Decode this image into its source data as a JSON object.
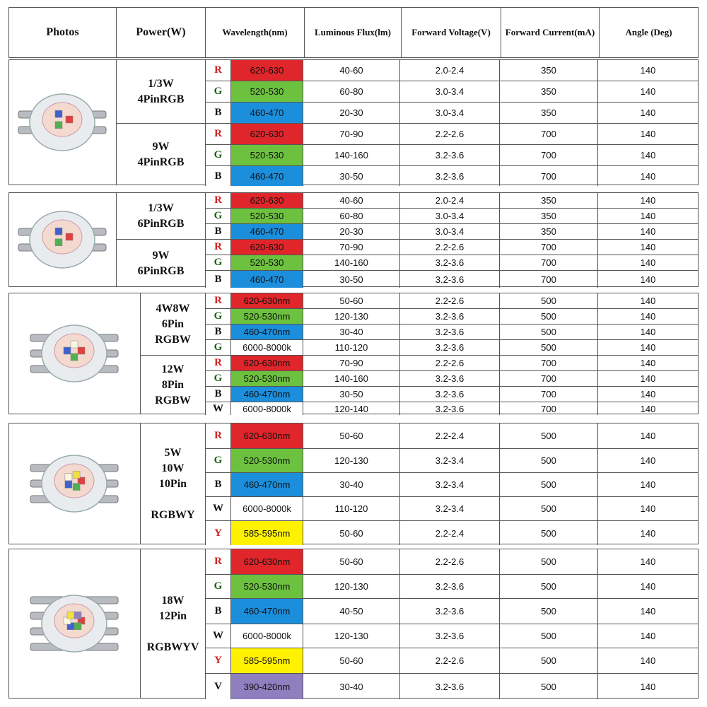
{
  "headers": {
    "photos": "Photos",
    "power": "Power(W)",
    "wavelength": "Wavelength(nm)",
    "flux": "Luminous Flux(lm)",
    "voltage": "Forward Voltage(V)",
    "current": "Forward Current(mA)",
    "angle": "Angle (Deg)"
  },
  "colors": {
    "R": "#e0262b",
    "G": "#6cc13e",
    "B": "#1c8fdc",
    "W": "#ffffff",
    "Y": "#fff200",
    "V": "#8f7fbe"
  },
  "groups": [
    {
      "powers": [
        {
          "label": "1/3W\n4PinRGB"
        },
        {
          "label": "9W\n4PinRGB"
        }
      ],
      "rows": [
        {
          "letter": "R",
          "wl": "620-630",
          "flux": "40-60",
          "v": "2.0-2.4",
          "i": "350",
          "angle": "140"
        },
        {
          "letter": "G",
          "wl": "520-530",
          "flux": "60-80",
          "v": "3.0-3.4",
          "i": "350",
          "angle": "140"
        },
        {
          "letter": "B",
          "wl": "460-470",
          "flux": "20-30",
          "v": "3.0-3.4",
          "i": "350",
          "angle": "140"
        },
        {
          "letter": "R",
          "wl": "620-630",
          "flux": "70-90",
          "v": "2.2-2.6",
          "i": "700",
          "angle": "140"
        },
        {
          "letter": "G",
          "wl": "520-530",
          "flux": "140-160",
          "v": "3.2-3.6",
          "i": "700",
          "angle": "140"
        },
        {
          "letter": "B",
          "wl": "460-470",
          "flux": "30-50",
          "v": "3.2-3.6",
          "i": "700",
          "angle": "140"
        }
      ]
    },
    {
      "powers": [
        {
          "label": "1/3W\n6PinRGB"
        },
        {
          "label": "9W\n6PinRGB"
        }
      ],
      "rows": [
        {
          "letter": "R",
          "wl": "620-630",
          "flux": "40-60",
          "v": "2.0-2.4",
          "i": "350",
          "angle": "140"
        },
        {
          "letter": "G",
          "wl": "520-530",
          "flux": "60-80",
          "v": "3.0-3.4",
          "i": "350",
          "angle": "140"
        },
        {
          "letter": "B",
          "wl": "460-470",
          "flux": "20-30",
          "v": "3.0-3.4",
          "i": "350",
          "angle": "140"
        },
        {
          "letter": "R",
          "wl": "620-630",
          "flux": "70-90",
          "v": "2.2-2.6",
          "i": "700",
          "angle": "140"
        },
        {
          "letter": "G",
          "wl": "520-530",
          "flux": "140-160",
          "v": "3.2-3.6",
          "i": "700",
          "angle": "140"
        },
        {
          "letter": "B",
          "wl": "460-470",
          "flux": "30-50",
          "v": "3.2-3.6",
          "i": "700",
          "angle": "140"
        }
      ]
    },
    {
      "powers": [
        {
          "label": "4W8W\n6Pin\nRGBW"
        },
        {
          "label": "12W\n8Pin\nRGBW"
        }
      ],
      "rows": [
        {
          "letter": "R",
          "wl": "620-630nm",
          "flux": "50-60",
          "v": "2.2-2.6",
          "i": "500",
          "angle": "140"
        },
        {
          "letter": "G",
          "wl": "520-530nm",
          "flux": "120-130",
          "v": "3.2-3.6",
          "i": "500",
          "angle": "140"
        },
        {
          "letter": "B",
          "wl": "460-470nm",
          "flux": "30-40",
          "v": "3.2-3.6",
          "i": "500",
          "angle": "140"
        },
        {
          "letter": "G",
          "color": "W",
          "wl": "6000-8000k",
          "flux": "110-120",
          "v": "3.2-3.6",
          "i": "500",
          "angle": "140"
        },
        {
          "letter": "R",
          "wl": "620-630nm",
          "flux": "70-90",
          "v": "2.2-2.6",
          "i": "700",
          "angle": "140"
        },
        {
          "letter": "G",
          "wl": "520-530nm",
          "flux": "140-160",
          "v": "3.2-3.6",
          "i": "700",
          "angle": "140"
        },
        {
          "letter": "B",
          "wl": "460-470nm",
          "flux": "30-50",
          "v": "3.2-3.6",
          "i": "700",
          "angle": "140"
        },
        {
          "letter": "W",
          "wl": "6000-8000k",
          "flux": "120-140",
          "v": "3.2-3.6",
          "i": "700",
          "angle": "140"
        }
      ]
    },
    {
      "powers": [
        {
          "label": "5W\n10W\n10Pin\n\nRGBWY"
        }
      ],
      "rows": [
        {
          "letter": "R",
          "wl": "620-630nm",
          "flux": "50-60",
          "v": "2.2-2.4",
          "i": "500",
          "angle": "140"
        },
        {
          "letter": "G",
          "wl": "520-530nm",
          "flux": "120-130",
          "v": "3.2-3.4",
          "i": "500",
          "angle": "140"
        },
        {
          "letter": "B",
          "wl": "460-470nm",
          "flux": "30-40",
          "v": "3.2-3.4",
          "i": "500",
          "angle": "140"
        },
        {
          "letter": "W",
          "wl": "6000-8000k",
          "flux": "110-120",
          "v": "3.2-3.4",
          "i": "500",
          "angle": "140"
        },
        {
          "letter": "Y",
          "wl": "585-595nm",
          "flux": "50-60",
          "v": "2.2-2.4",
          "i": "500",
          "angle": "140"
        }
      ]
    },
    {
      "powers": [
        {
          "label": "18W\n12Pin\n\nRGBWYV"
        }
      ],
      "rows": [
        {
          "letter": "R",
          "wl": "620-630nm",
          "flux": "50-60",
          "v": "2.2-2.6",
          "i": "500",
          "angle": "140"
        },
        {
          "letter": "G",
          "wl": "520-530nm",
          "flux": "120-130",
          "v": "3.2-3.6",
          "i": "500",
          "angle": "140"
        },
        {
          "letter": "B",
          "wl": "460-470nm",
          "flux": "40-50",
          "v": "3.2-3.6",
          "i": "500",
          "angle": "140"
        },
        {
          "letter": "W",
          "wl": "6000-8000k",
          "flux": "120-130",
          "v": "3.2-3.6",
          "i": "500",
          "angle": "140"
        },
        {
          "letter": "Y",
          "wl": "585-595nm",
          "flux": "50-60",
          "v": "2.2-2.6",
          "i": "500",
          "angle": "140"
        },
        {
          "letter": "V",
          "wl": "390-420nm",
          "flux": "30-40",
          "v": "3.2-3.6",
          "i": "500",
          "angle": "140"
        }
      ]
    }
  ]
}
